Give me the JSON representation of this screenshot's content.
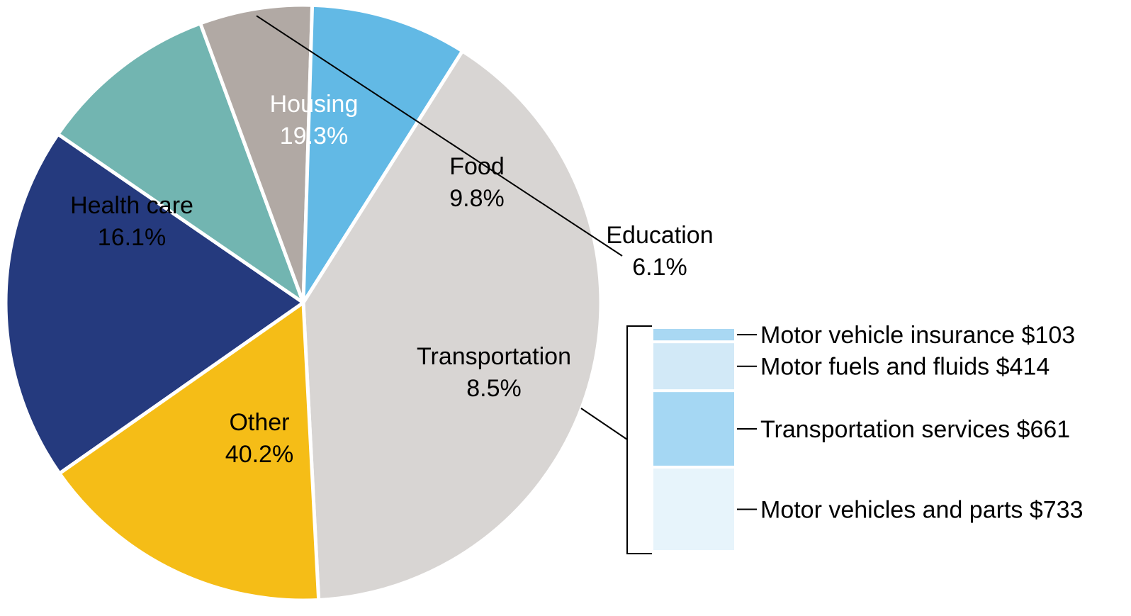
{
  "chart_data": {
    "type": "pie",
    "title": "",
    "slices": [
      {
        "label": "Housing",
        "value": 19.3,
        "value_label": "19.3%",
        "color": "#253A7E",
        "text_color": "#ffffff"
      },
      {
        "label": "Food",
        "value": 9.8,
        "value_label": "9.8%",
        "color": "#72B5B1",
        "text_color": "#000000"
      },
      {
        "label": "Education",
        "value": 6.1,
        "value_label": "6.1%",
        "color": "#B1A9A4",
        "text_color": "#000000"
      },
      {
        "label": "Transportation",
        "value": 8.5,
        "value_label": "8.5%",
        "color": "#62B9E5",
        "text_color": "#000000"
      },
      {
        "label": "Other",
        "value": 40.2,
        "value_label": "40.2%",
        "color": "#D8D5D3",
        "text_color": "#000000"
      },
      {
        "label": "Health care",
        "value": 16.1,
        "value_label": "16.1%",
        "color": "#F5BD17",
        "text_color": "#000000"
      }
    ],
    "breakdown": {
      "parent": "Transportation",
      "items": [
        {
          "label": "Motor vehicle insurance",
          "value": 103,
          "value_label": "$103",
          "color": "#A9D8F3"
        },
        {
          "label": "Motor fuels and fluids",
          "value": 414,
          "value_label": "$414",
          "color": "#D2E9F7"
        },
        {
          "label": "Transportation services",
          "value": 661,
          "value_label": "$661",
          "color": "#A5D7F3"
        },
        {
          "label": "Motor vehicles and parts",
          "value": 733,
          "value_label": "$733",
          "color": "#E7F4FB"
        }
      ]
    }
  }
}
